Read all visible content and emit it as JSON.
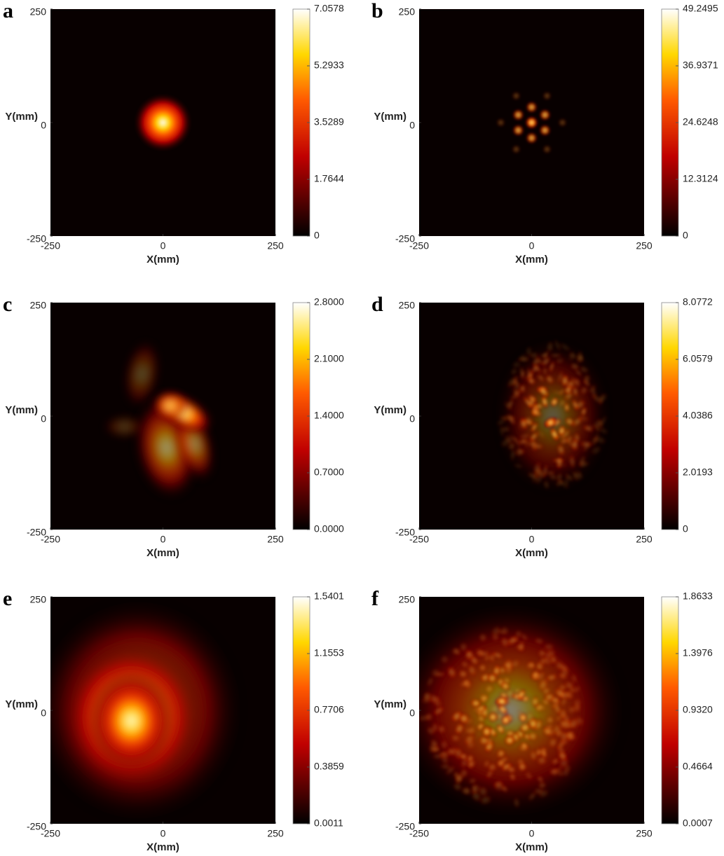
{
  "chart_data": [
    {
      "type": "heatmap",
      "label": "a",
      "xlabel": "X(mm)",
      "ylabel": "Y(mm)",
      "xlim": [
        -250,
        250
      ],
      "xticks": [
        -250,
        0,
        250
      ],
      "ylim": [
        -250,
        250
      ],
      "yticks": [
        -250,
        0,
        250
      ],
      "colormap": "hot",
      "clim": [
        0,
        7.0578
      ],
      "cticks": [
        0,
        1.7644,
        3.5289,
        5.2933,
        7.0578
      ]
    },
    {
      "type": "heatmap",
      "label": "b",
      "xlabel": "X(mm)",
      "ylabel": "Y(mm)",
      "xlim": [
        -250,
        250
      ],
      "xticks": [
        -250,
        0,
        250
      ],
      "ylim": [
        -250,
        250
      ],
      "yticks": [
        -250,
        0,
        250
      ],
      "colormap": "hot",
      "clim": [
        0,
        49.2495
      ],
      "cticks": [
        0,
        12.3124,
        24.6248,
        36.9371,
        49.2495
      ]
    },
    {
      "type": "heatmap",
      "label": "c",
      "xlabel": "X(mm)",
      "ylabel": "Y(mm)",
      "xlim": [
        -250,
        250
      ],
      "xticks": [
        -250,
        0,
        250
      ],
      "ylim": [
        -250,
        250
      ],
      "yticks": [
        -250,
        0,
        250
      ],
      "colormap": "hot",
      "clim": [
        0,
        2.8
      ],
      "cticks": [
        {
          "value": 0,
          "label": "0.0000"
        },
        {
          "value": 0.7,
          "label": "0.7000"
        },
        {
          "value": 1.4,
          "label": "1.4000"
        },
        {
          "value": 2.1,
          "label": "2.1000"
        },
        {
          "value": 2.8,
          "label": "2.8000"
        }
      ]
    },
    {
      "type": "heatmap",
      "label": "d",
      "xlabel": "X(mm)",
      "ylabel": "Y(mm)",
      "xlim": [
        -250,
        250
      ],
      "xticks": [
        -250,
        0,
        250
      ],
      "ylim": [
        -250,
        250
      ],
      "yticks": [
        -250,
        0,
        250
      ],
      "colormap": "hot",
      "clim": [
        0,
        8.0772
      ],
      "cticks": [
        0,
        2.0193,
        4.0386,
        6.0579,
        8.0772
      ]
    },
    {
      "type": "heatmap",
      "label": "e",
      "xlabel": "X(mm)",
      "ylabel": "Y(mm)",
      "xlim": [
        -250,
        250
      ],
      "xticks": [
        -250,
        0,
        250
      ],
      "ylim": [
        -250,
        250
      ],
      "yticks": [
        -250,
        0,
        250
      ],
      "colormap": "hot",
      "clim": [
        0.0011,
        1.5401
      ],
      "cticks": [
        0.0011,
        0.3859,
        0.7706,
        1.1553,
        1.5401
      ]
    },
    {
      "type": "heatmap",
      "label": "f",
      "xlabel": "X(mm)",
      "ylabel": "Y(mm)",
      "xlim": [
        -250,
        250
      ],
      "xticks": [
        -250,
        0,
        250
      ],
      "ylim": [
        -250,
        250
      ],
      "yticks": [
        -250,
        0,
        250
      ],
      "colormap": "hot",
      "clim": [
        0.0007,
        1.8633
      ],
      "cticks": [
        0.0007,
        0.4664,
        {
          "value": 0.932,
          "label": "0.9320"
        },
        1.3976,
        1.8633
      ]
    }
  ]
}
